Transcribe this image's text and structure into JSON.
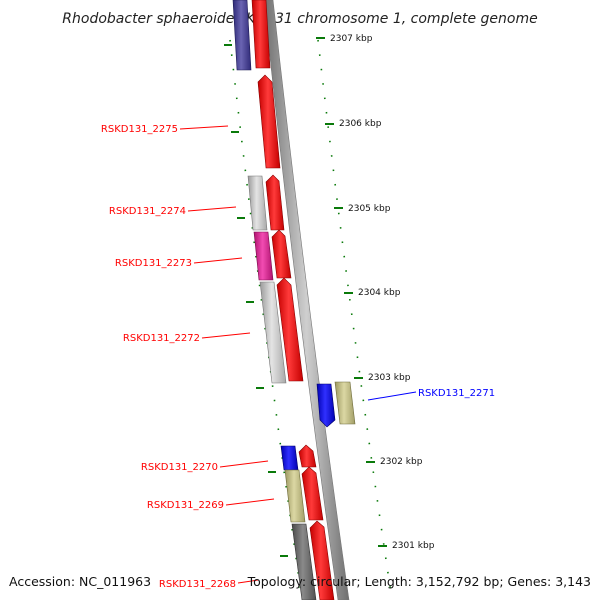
{
  "title": "Rhodobacter sphaeroides KD131 chromosome 1, complete genome",
  "footer": {
    "accession": "Accession: NC_011963",
    "topology": "Topology: circular; Length: 3,152,792 bp; Genes: 3,143"
  },
  "colors": {
    "red_gene": "#ff0000",
    "grey_gene": "#c8c8c8",
    "dark_grey_gene": "#707070",
    "navy_gene": "#4b4596",
    "magenta_gene": "#e6209a",
    "blue_gene": "#0000ff",
    "khaki_gene": "#c8c48a",
    "label_red": "#ff0000",
    "label_blue": "#0000ff",
    "tick_green": "#0a7a0a",
    "backbone": "#999999"
  },
  "scale_ticks": [
    {
      "label": "2307 kbp"
    },
    {
      "label": "2306 kbp"
    },
    {
      "label": "2305 kbp"
    },
    {
      "label": "2304 kbp"
    },
    {
      "label": "2303 kbp"
    },
    {
      "label": "2302 kbp"
    },
    {
      "label": "2301 kbp"
    }
  ],
  "gene_labels": [
    {
      "id": "RSKD131_2275",
      "text": "RSKD131_2275",
      "color": "#ff0000"
    },
    {
      "id": "RSKD131_2274",
      "text": "RSKD131_2274",
      "color": "#ff0000"
    },
    {
      "id": "RSKD131_2273",
      "text": "RSKD131_2273",
      "color": "#ff0000"
    },
    {
      "id": "RSKD131_2272",
      "text": "RSKD131_2272",
      "color": "#ff0000"
    },
    {
      "id": "RSKD131_2271",
      "text": "RSKD131_2271",
      "color": "#0000ff"
    },
    {
      "id": "RSKD131_2270",
      "text": "RSKD131_2270",
      "color": "#ff0000"
    },
    {
      "id": "RSKD131_2269",
      "text": "RSKD131_2269",
      "color": "#ff0000"
    },
    {
      "id": "RSKD131_2268",
      "text": "RSKD131_2268",
      "color": "#ff0000"
    }
  ]
}
